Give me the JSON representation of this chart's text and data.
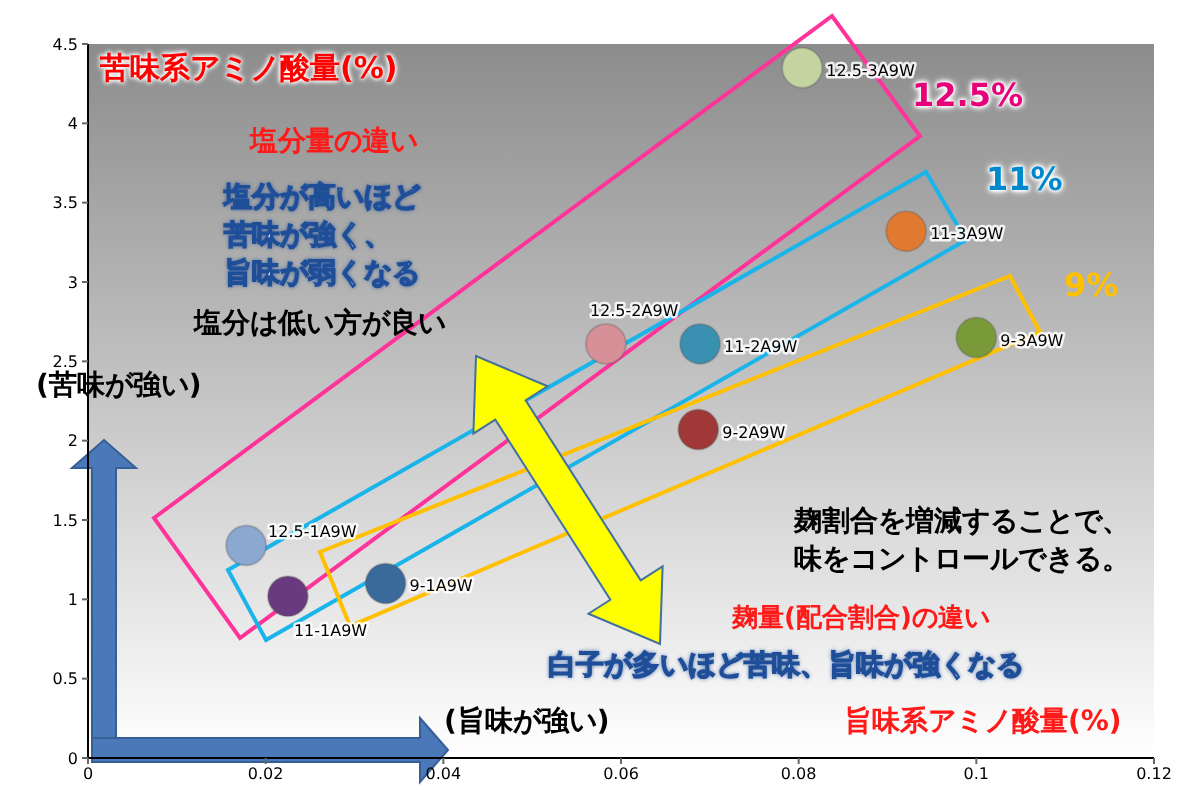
{
  "chart_data": {
    "type": "scatter",
    "xlabel": "旨味系アミノ酸量(%)",
    "ylabel": "苦味系アミノ酸量(%)",
    "series": [
      {
        "name": "12.5-3A9W",
        "color": "#c4d4a0",
        "x": [
          0.0804
        ],
        "values": [
          4.35
        ]
      },
      {
        "name": "11-3A9W",
        "color": "#e07a30",
        "x": [
          0.0921
        ],
        "values": [
          3.32
        ]
      },
      {
        "name": "9-3A9W",
        "color": "#7a9a3a",
        "x": [
          0.1
        ],
        "values": [
          2.65
        ]
      },
      {
        "name": "12.5-2A9W",
        "color": "#d89098",
        "x": [
          0.0583
        ],
        "values": [
          2.61
        ]
      },
      {
        "name": "11-2A9W",
        "color": "#3a90b0",
        "x": [
          0.0689
        ],
        "values": [
          2.61
        ]
      },
      {
        "name": "9-2A9W",
        "color": "#a03838",
        "x": [
          0.0687
        ],
        "values": [
          2.07
        ]
      },
      {
        "name": "12.5-1A9W",
        "color": "#8aa8d0",
        "x": [
          0.0178
        ],
        "values": [
          1.34
        ]
      },
      {
        "name": "11-1A9W",
        "color": "#6a3a80",
        "x": [
          0.0225
        ],
        "values": [
          1.02
        ]
      },
      {
        "name": "9-1A9W",
        "color": "#3a6a9a",
        "x": [
          0.0335
        ],
        "values": [
          1.1
        ]
      }
    ],
    "annotations": [
      "塩分量の違い",
      "塩分が高いほど苦味が強く、旨味が弱くなる",
      "塩分は低い方が良い",
      "(苦味が強い)",
      "(旨味が強い)",
      "麹割合を増減することで、味をコントロールできる。",
      "麹量(配合割合)の違い",
      "白子が多いほど苦味、旨味が強くなる",
      "12.5%",
      "11%",
      "9%"
    ],
    "xlim": [
      0,
      0.12
    ],
    "xticks": [
      0,
      0.02,
      0.04,
      0.06,
      0.08,
      0.1,
      0.12
    ],
    "ylim": [
      0,
      4.5
    ],
    "yticks": [
      0,
      0.5,
      1,
      1.5,
      2,
      2.5,
      3,
      3.5,
      4,
      4.5
    ],
    "marker": "circle"
  }
}
